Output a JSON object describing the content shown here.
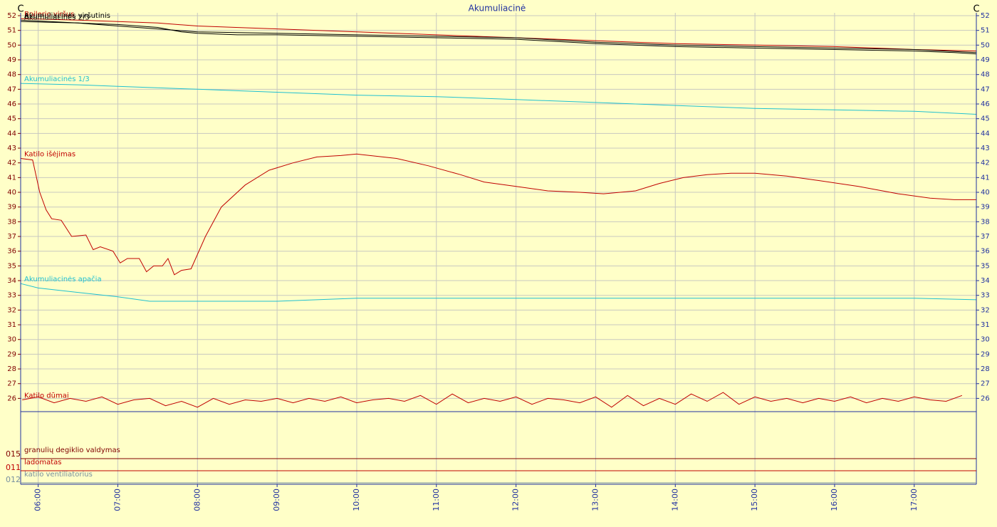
{
  "chart_data": {
    "type": "line",
    "title": "Akumuliacinė",
    "y_unit": "C",
    "xlim": [
      5.78,
      17.78
    ],
    "ylim": [
      25.1,
      52
    ],
    "xticks": [
      {
        "value": 6,
        "label": "06:00"
      },
      {
        "value": 7,
        "label": "07:00"
      },
      {
        "value": 8,
        "label": "08:00"
      },
      {
        "value": 9,
        "label": "09:00"
      },
      {
        "value": 10,
        "label": "10:00"
      },
      {
        "value": 11,
        "label": "11:00"
      },
      {
        "value": 12,
        "label": "12:00"
      },
      {
        "value": 13,
        "label": "13:00"
      },
      {
        "value": 14,
        "label": "14:00"
      },
      {
        "value": 15,
        "label": "15:00"
      },
      {
        "value": 16,
        "label": "16:00"
      },
      {
        "value": 17,
        "label": "17:00"
      }
    ],
    "yticks": [
      26,
      27,
      28,
      29,
      30,
      31,
      32,
      33,
      34,
      35,
      36,
      37,
      38,
      39,
      40,
      41,
      42,
      43,
      44,
      45,
      46,
      47,
      48,
      49,
      50,
      51,
      52
    ],
    "grid": true,
    "series": [
      {
        "name": "Boilerio viršus",
        "color": "#c00000",
        "x": [
          5.78,
          6.5,
          7.0,
          7.5,
          8.0,
          9.0,
          10.0,
          11.0,
          12.0,
          13.0,
          14.0,
          15.0,
          16.0,
          17.0,
          17.78
        ],
        "values": [
          51.8,
          51.7,
          51.6,
          51.5,
          51.3,
          51.1,
          50.9,
          50.7,
          50.5,
          50.3,
          50.1,
          50.0,
          49.9,
          49.7,
          49.6
        ]
      },
      {
        "name": "Akumuliacinės 2/3",
        "color": "#000000",
        "x": [
          5.78,
          6.5,
          7.0,
          7.5,
          8.0,
          9.0,
          10.0,
          11.0,
          12.0,
          13.0,
          14.0,
          15.0,
          16.0,
          17.0,
          17.78
        ],
        "values": [
          51.6,
          51.5,
          51.3,
          51.1,
          50.9,
          50.8,
          50.7,
          50.6,
          50.5,
          50.2,
          50.0,
          49.9,
          49.8,
          49.7,
          49.5
        ]
      },
      {
        "name": "Akumuliacinės viršutinis",
        "color": "#000000",
        "x": [
          5.78,
          6.5,
          7.0,
          7.5,
          7.8,
          8.0,
          8.5,
          9.0,
          10.0,
          11.0,
          12.0,
          13.0,
          14.0,
          15.0,
          16.0,
          17.0,
          17.5,
          17.78
        ],
        "values": [
          51.7,
          51.5,
          51.4,
          51.2,
          50.9,
          50.8,
          50.7,
          50.7,
          50.6,
          50.5,
          50.4,
          50.1,
          49.9,
          49.8,
          49.7,
          49.6,
          49.5,
          49.4
        ]
      },
      {
        "name": "Akumuliacinės 1/3",
        "color": "#20c0d0",
        "x": [
          5.78,
          6.5,
          7.0,
          8.0,
          9.0,
          10.0,
          11.0,
          12.0,
          13.0,
          14.0,
          15.0,
          16.0,
          17.0,
          17.78
        ],
        "values": [
          47.4,
          47.3,
          47.2,
          47.0,
          46.8,
          46.6,
          46.5,
          46.3,
          46.1,
          45.9,
          45.7,
          45.6,
          45.5,
          45.3
        ]
      },
      {
        "name": "Katilo išėjimas",
        "color": "#c00000",
        "x": [
          5.78,
          5.93,
          6.02,
          6.1,
          6.17,
          6.29,
          6.42,
          6.6,
          6.69,
          6.78,
          6.94,
          7.03,
          7.12,
          7.27,
          7.36,
          7.45,
          7.56,
          7.63,
          7.71,
          7.8,
          7.92,
          8.1,
          8.3,
          8.6,
          8.9,
          9.2,
          9.5,
          9.8,
          10.0,
          10.5,
          10.9,
          11.3,
          11.6,
          12.0,
          12.4,
          12.8,
          13.1,
          13.5,
          13.8,
          14.1,
          14.4,
          14.7,
          15.0,
          15.4,
          15.8,
          16.3,
          16.8,
          17.2,
          17.5,
          17.78
        ],
        "values": [
          42.3,
          42.2,
          40.0,
          38.8,
          38.2,
          38.1,
          37.0,
          37.1,
          36.1,
          36.3,
          36.0,
          35.2,
          35.5,
          35.5,
          34.6,
          35.0,
          35.0,
          35.5,
          34.4,
          34.7,
          34.8,
          37.0,
          39.0,
          40.5,
          41.5,
          42.0,
          42.4,
          42.5,
          42.6,
          42.3,
          41.8,
          41.2,
          40.7,
          40.4,
          40.1,
          40.0,
          39.9,
          40.1,
          40.6,
          41.0,
          41.2,
          41.3,
          41.3,
          41.1,
          40.8,
          40.4,
          39.9,
          39.6,
          39.5,
          39.5
        ]
      },
      {
        "name": "Akumuliacinės apačia",
        "color": "#20c0d0",
        "x": [
          5.78,
          6.0,
          6.5,
          7.0,
          7.4,
          8.0,
          9.0,
          9.5,
          10.0,
          12.0,
          14.0,
          16.0,
          17.0,
          17.78
        ],
        "values": [
          33.8,
          33.5,
          33.2,
          32.9,
          32.6,
          32.6,
          32.6,
          32.7,
          32.8,
          32.8,
          32.8,
          32.8,
          32.8,
          32.7
        ]
      },
      {
        "name": "Katilo dūmai",
        "color": "#c00000",
        "x": [
          5.8,
          6.0,
          6.2,
          6.4,
          6.6,
          6.8,
          7.0,
          7.2,
          7.4,
          7.6,
          7.8,
          8.0,
          8.2,
          8.4,
          8.6,
          8.8,
          9.0,
          9.2,
          9.4,
          9.6,
          9.8,
          10.0,
          10.2,
          10.4,
          10.6,
          10.8,
          11.0,
          11.2,
          11.4,
          11.6,
          11.8,
          12.0,
          12.2,
          12.4,
          12.6,
          12.8,
          13.0,
          13.2,
          13.4,
          13.6,
          13.8,
          14.0,
          14.2,
          14.4,
          14.6,
          14.8,
          15.0,
          15.2,
          15.4,
          15.6,
          15.8,
          16.0,
          16.2,
          16.4,
          16.6,
          16.8,
          17.0,
          17.2,
          17.4,
          17.6
        ],
        "values": [
          25.9,
          26.1,
          25.7,
          26.0,
          25.8,
          26.1,
          25.6,
          25.9,
          26.0,
          25.5,
          25.8,
          25.4,
          26.0,
          25.6,
          25.9,
          25.8,
          26.0,
          25.7,
          26.0,
          25.8,
          26.1,
          25.7,
          25.9,
          26.0,
          25.8,
          26.2,
          25.6,
          26.3,
          25.7,
          26.0,
          25.8,
          26.1,
          25.6,
          26.0,
          25.9,
          25.7,
          26.1,
          25.4,
          26.2,
          25.5,
          26.0,
          25.6,
          26.3,
          25.8,
          26.4,
          25.6,
          26.1,
          25.8,
          26.0,
          25.7,
          26.0,
          25.8,
          26.1,
          25.7,
          26.0,
          25.8,
          26.1,
          25.9,
          25.8,
          26.2
        ]
      }
    ],
    "status_channels": [
      {
        "name": "granulių degiklio valdymas",
        "code": "015",
        "color": "#800000"
      },
      {
        "name": "ladomatas",
        "code": "011",
        "color": "#c00000"
      },
      {
        "name": "katilo ventiliatorius",
        "code": "012",
        "color": "#7890a0"
      }
    ]
  }
}
